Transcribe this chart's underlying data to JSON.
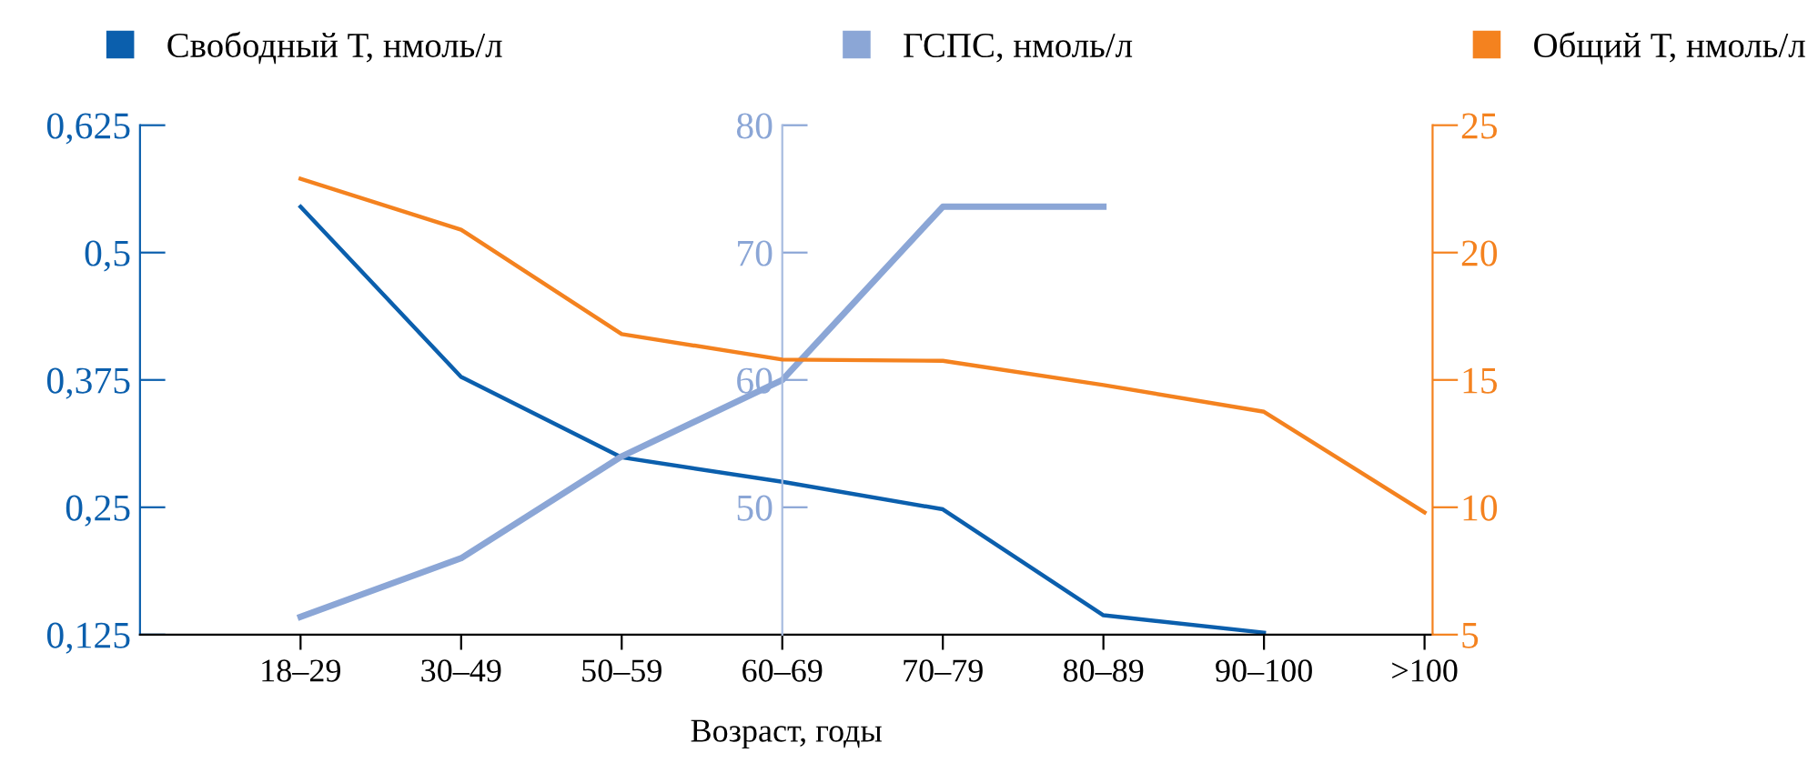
{
  "chart_data": {
    "type": "line",
    "xlabel": "Возраст, годы",
    "legend": "top",
    "grid": false,
    "marker": "none",
    "line_style": "solid",
    "categories": [
      "18–29",
      "30–49",
      "50–59",
      "60–69",
      "70–79",
      "80–89",
      "90–100",
      ">100"
    ],
    "ylim": [
      0.125,
      0.625
    ],
    "yticks": [
      {
        "value": 0.125,
        "label": "0,125"
      },
      {
        "value": 0.25,
        "label": "0,25"
      },
      {
        "value": 0.375,
        "label": "0,375"
      },
      {
        "value": 0.5,
        "label": "0,5"
      },
      {
        "value": 0.625,
        "label": "0,625"
      }
    ],
    "y2lim": [
      40,
      80
    ],
    "y2ticks": [
      50,
      60,
      70,
      80
    ],
    "y3lim": [
      5,
      25
    ],
    "y3ticks": [
      5,
      10,
      15,
      20,
      25
    ],
    "series": [
      {
        "name": "Свободный Т, нмоль/л",
        "color": "#0b5fad",
        "values": [
          0.545,
          0.378,
          0.299,
          0.275,
          0.248,
          0.144,
          0.127,
          null
        ]
      },
      {
        "name": "ГСПС, нмоль/л",
        "color": "#8ba6d6",
        "axis": "y2",
        "values": [
          41.4,
          46,
          54,
          60,
          73.6,
          73.6,
          null,
          null
        ]
      },
      {
        "name": "Общий Т, нмоль/л",
        "color": "#f4821f",
        "axis": "y3",
        "values": [
          22.9,
          20.9,
          16.8,
          15.8,
          15.75,
          14.8,
          13.75,
          9.8
        ]
      }
    ]
  }
}
